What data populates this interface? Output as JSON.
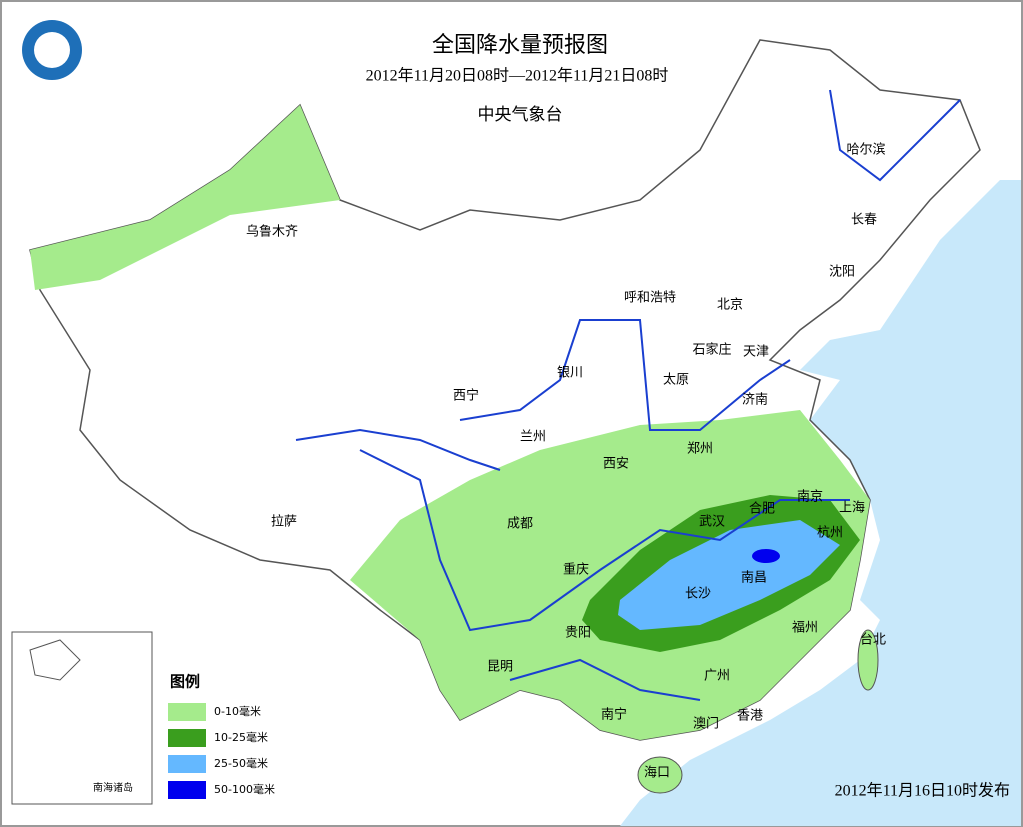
{
  "header": {
    "title": "全国降水量预报图",
    "subtitle": "2012年11月20日08时—2012年11月21日08时",
    "agency": "中央气象台"
  },
  "cities": [
    "乌鲁木齐",
    "哈尔滨",
    "长春",
    "沈阳",
    "呼和浩特",
    "北京",
    "天津",
    "石家庄",
    "银川",
    "太原",
    "济南",
    "西宁",
    "兰州",
    "郑州",
    "西安",
    "南京",
    "上海",
    "合肥",
    "武汉",
    "成都",
    "杭州",
    "拉萨",
    "重庆",
    "南昌",
    "长沙",
    "贵阳",
    "福州",
    "台北",
    "昆明",
    "广州",
    "南宁",
    "澳门",
    "香港",
    "海口"
  ],
  "legend": {
    "title": "图例",
    "items": [
      {
        "label": "0-10毫米",
        "color": "#a5eb8c"
      },
      {
        "label": "10-25毫米",
        "color": "#3a9e1e"
      },
      {
        "label": "25-50毫米",
        "color": "#64b8ff"
      },
      {
        "label": "50-100毫米",
        "color": "#0000ee"
      }
    ]
  },
  "inset": {
    "label": "南海诸岛"
  },
  "footer": "2012年11月16日10时发布"
}
